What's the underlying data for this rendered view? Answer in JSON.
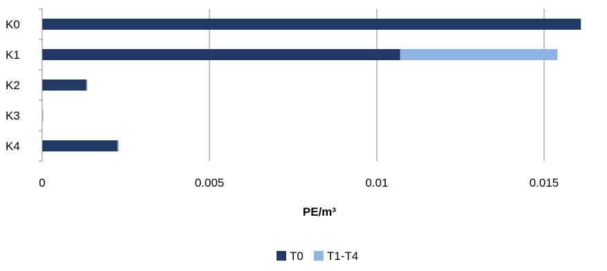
{
  "chart_data": {
    "type": "bar",
    "orientation": "horizontal",
    "stacked": true,
    "categories": [
      "K0",
      "K1",
      "K2",
      "K3",
      "K4"
    ],
    "series": [
      {
        "name": "T0",
        "color": "#1F3864",
        "values": [
          0.0161,
          0.0107,
          0.00132,
          0.0,
          0.00225
        ]
      },
      {
        "name": "T1-T4",
        "color": "#8EB4E3",
        "values": [
          0.0,
          0.0047,
          3e-05,
          3e-05,
          4e-05
        ]
      }
    ],
    "x_ticks": [
      "0",
      "0.005",
      "0.01",
      "0.015"
    ],
    "x_tick_values": [
      0,
      0.005,
      0.01,
      0.015
    ],
    "xlim": [
      0,
      0.0165
    ],
    "xlabel": "PE/m³",
    "ylabel": "",
    "title": "",
    "grid": "vertical",
    "legend_position": "bottom-center"
  }
}
